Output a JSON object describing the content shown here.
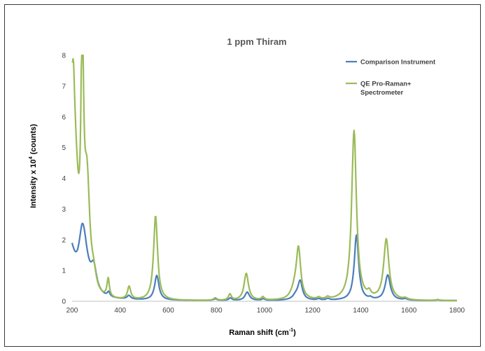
{
  "chart_data": {
    "type": "line",
    "title": "1 ppm Thiram",
    "xlabel": "Raman shift (cm",
    "xlabel_sup": "-1",
    "xlabel_end": ")",
    "ylabel": "Intensity x 10",
    "ylabel_sup": "4",
    "ylabel_end": " (counts)",
    "xlim": [
      200,
      1800
    ],
    "ylim": [
      0,
      8
    ],
    "x_ticks": [
      200,
      400,
      600,
      800,
      1000,
      1200,
      1400,
      1600,
      1800
    ],
    "y_ticks": [
      0,
      1,
      2,
      3,
      4,
      5,
      6,
      7,
      8
    ],
    "grid": false,
    "legend_position": "top-right",
    "series": [
      {
        "name": "Comparison Instrument",
        "color": "#4a7ebb",
        "baseline": 0.02,
        "start": {
          "x": 200,
          "y": 1.9
        },
        "peaks": [
          {
            "x": 243,
            "y": 2.45,
            "w": 25
          },
          {
            "x": 290,
            "y": 0.75,
            "w": 14
          },
          {
            "x": 352,
            "y": 0.15,
            "w": 6
          },
          {
            "x": 436,
            "y": 0.12,
            "w": 9
          },
          {
            "x": 552,
            "y": 0.8,
            "w": 11
          },
          {
            "x": 795,
            "y": 0.05,
            "w": 8
          },
          {
            "x": 858,
            "y": 0.08,
            "w": 7
          },
          {
            "x": 928,
            "y": 0.27,
            "w": 11
          },
          {
            "x": 995,
            "y": 0.05,
            "w": 7
          },
          {
            "x": 1130,
            "y": 0.14,
            "w": 16
          },
          {
            "x": 1148,
            "y": 0.6,
            "w": 11
          },
          {
            "x": 1225,
            "y": 0.04,
            "w": 8
          },
          {
            "x": 1263,
            "y": 0.05,
            "w": 8
          },
          {
            "x": 1382,
            "y": 2.12,
            "w": 11
          },
          {
            "x": 1440,
            "y": 0.05,
            "w": 8
          },
          {
            "x": 1512,
            "y": 0.82,
            "w": 13
          },
          {
            "x": 1585,
            "y": 0.04,
            "w": 10
          },
          {
            "x": 1720,
            "y": 0.02,
            "w": 10
          }
        ]
      },
      {
        "name": "QE Pro-Raman+ Spectrometer",
        "name_lines": [
          "QE Pro-Raman+",
          "Spectrometer"
        ],
        "color": "#9bbb59",
        "baseline": 0.01,
        "start": {
          "x": 200,
          "y": 7.8
        },
        "peaks": [
          {
            "x": 204,
            "y": 8.2,
            "w": 5
          },
          {
            "x": 242,
            "y": 8.5,
            "w": 7
          },
          {
            "x": 262,
            "y": 3.6,
            "w": 14
          },
          {
            "x": 290,
            "y": 0.45,
            "w": 12
          },
          {
            "x": 350,
            "y": 0.6,
            "w": 6
          },
          {
            "x": 437,
            "y": 0.42,
            "w": 8
          },
          {
            "x": 547,
            "y": 2.75,
            "w": 10
          },
          {
            "x": 795,
            "y": 0.08,
            "w": 8
          },
          {
            "x": 856,
            "y": 0.2,
            "w": 7
          },
          {
            "x": 924,
            "y": 0.88,
            "w": 11
          },
          {
            "x": 993,
            "y": 0.1,
            "w": 7
          },
          {
            "x": 1125,
            "y": 0.3,
            "w": 18
          },
          {
            "x": 1141,
            "y": 1.6,
            "w": 11
          },
          {
            "x": 1225,
            "y": 0.06,
            "w": 8
          },
          {
            "x": 1262,
            "y": 0.07,
            "w": 8
          },
          {
            "x": 1372,
            "y": 5.52,
            "w": 12
          },
          {
            "x": 1435,
            "y": 0.16,
            "w": 8
          },
          {
            "x": 1506,
            "y": 1.98,
            "w": 13
          },
          {
            "x": 1585,
            "y": 0.05,
            "w": 10
          },
          {
            "x": 1720,
            "y": 0.03,
            "w": 10
          }
        ]
      }
    ]
  }
}
